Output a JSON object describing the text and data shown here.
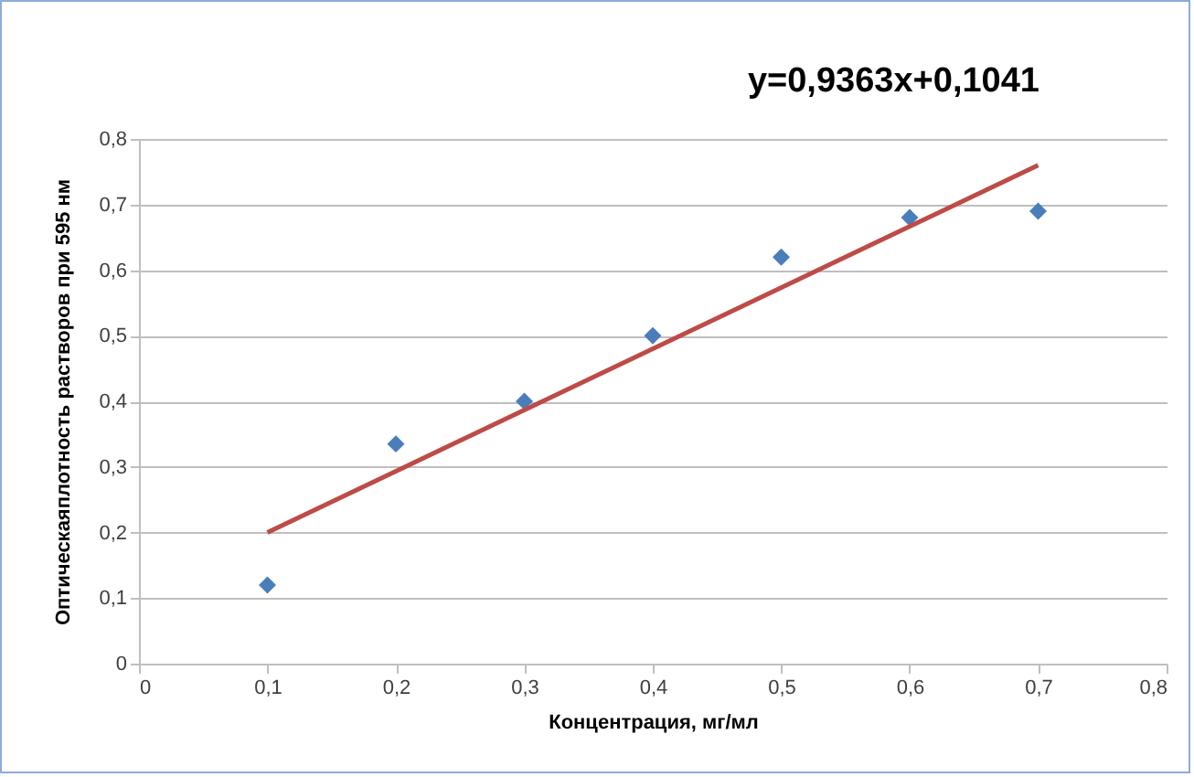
{
  "chart_data": {
    "type": "scatter",
    "xlabel": "Концентрация, мг/мл",
    "ylabel": "Оптическаяплотность растворов при 595 нм",
    "annotations": [
      "y=0,9363x+0,1041"
    ],
    "x": [
      0.1,
      0.2,
      0.3,
      0.4,
      0.5,
      0.6,
      0.7
    ],
    "series": [
      {
        "color": "#4a7ebb",
        "marker": "diamond",
        "values": [
          0.12,
          0.335,
          0.4,
          0.5,
          0.62,
          0.68,
          0.69
        ]
      },
      {
        "type": "line",
        "color": "#be4b48",
        "x": [
          0.1,
          0.7
        ],
        "values": [
          0.2,
          0.76
        ]
      }
    ],
    "xlim": [
      0,
      0.8
    ],
    "ylim": [
      0,
      0.8
    ],
    "xticks": [
      0,
      {
        "value": 0.1,
        "label": "0,1"
      },
      {
        "value": 0.2,
        "label": "0,2"
      },
      {
        "value": 0.3,
        "label": "0,3"
      },
      {
        "value": 0.4,
        "label": "0,4"
      },
      {
        "value": 0.5,
        "label": "0,5"
      },
      {
        "value": 0.6,
        "label": "0,6"
      },
      {
        "value": 0.7,
        "label": "0,7"
      },
      {
        "value": 0.8,
        "label": "0,8"
      }
    ],
    "yticks": [
      0,
      {
        "value": 0.1,
        "label": "0,1"
      },
      {
        "value": 0.2,
        "label": "0,2"
      },
      {
        "value": 0.3,
        "label": "0,3"
      },
      {
        "value": 0.4,
        "label": "0,4"
      },
      {
        "value": 0.5,
        "label": "0,5"
      },
      {
        "value": 0.6,
        "label": "0,6"
      },
      {
        "value": 0.7,
        "label": "0,7"
      },
      {
        "value": 0.8,
        "label": "0,8"
      }
    ],
    "grid": "y"
  }
}
